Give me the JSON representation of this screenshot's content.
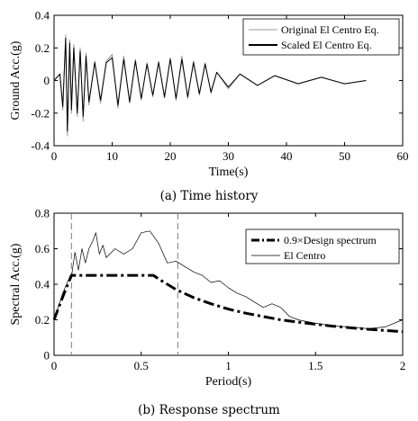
{
  "captions": {
    "top": "(a) Time history",
    "bottom": "(b) Response spectrum"
  },
  "chart_data": [
    {
      "type": "line",
      "xlabel": "Time(s)",
      "ylabel": "Ground Acc.(g)",
      "xlim": [
        0,
        60
      ],
      "ylim": [
        -0.4,
        0.4
      ],
      "xticks": [
        0,
        10,
        20,
        30,
        40,
        50,
        60
      ],
      "yticks": [
        -0.4,
        -0.2,
        0,
        0.2,
        0.4
      ],
      "xtick_labels": [
        "0",
        "10",
        "20",
        "30",
        "40",
        "50",
        "60"
      ],
      "ytick_labels": [
        "-0.4",
        "-0.2",
        "0",
        "0.2",
        "0.4"
      ],
      "legend_position": "top-right",
      "colors": {
        "original": "#9a9a9a",
        "scaled": "#000000"
      },
      "series": [
        {
          "name": "Original El Centro Eq.",
          "x": [
            0,
            1,
            1.5,
            2,
            2.3,
            2.7,
            3,
            3.4,
            4,
            4.5,
            5,
            5.5,
            6,
            7,
            8,
            9,
            10,
            11,
            12,
            13,
            14,
            15,
            16,
            17,
            18,
            19,
            20,
            21,
            22,
            23,
            24,
            25,
            26,
            27,
            28,
            30,
            32,
            35,
            38,
            42,
            46,
            50,
            53.7
          ],
          "values": [
            0,
            0.04,
            -0.18,
            0.28,
            -0.34,
            0.25,
            -0.2,
            0.22,
            -0.22,
            0.2,
            -0.25,
            0.17,
            -0.15,
            0.12,
            -0.14,
            0.12,
            0.16,
            -0.17,
            0.15,
            -0.14,
            0.13,
            -0.12,
            0.11,
            -0.1,
            0.12,
            -0.11,
            0.14,
            -0.12,
            0.15,
            -0.11,
            0.12,
            -0.09,
            0.11,
            -0.08,
            0.05,
            -0.05,
            0.04,
            -0.03,
            0.03,
            -0.02,
            0.02,
            -0.02,
            0
          ]
        },
        {
          "name": "Scaled El Centro Eq.",
          "x": [
            0,
            1,
            1.5,
            2,
            2.3,
            2.7,
            3,
            3.4,
            4,
            4.5,
            5,
            5.5,
            6,
            7,
            8,
            9,
            10,
            11,
            12,
            13,
            14,
            15,
            16,
            17,
            18,
            19,
            20,
            21,
            22,
            23,
            24,
            25,
            26,
            27,
            28,
            30,
            32,
            35,
            38,
            42,
            46,
            50,
            53.7
          ],
          "values": [
            0,
            0.04,
            -0.16,
            0.26,
            -0.31,
            0.23,
            -0.18,
            0.2,
            -0.2,
            0.18,
            -0.22,
            0.15,
            -0.13,
            0.11,
            -0.12,
            0.11,
            0.14,
            -0.15,
            0.13,
            -0.13,
            0.12,
            -0.11,
            0.1,
            -0.09,
            0.11,
            -0.1,
            0.13,
            -0.11,
            0.13,
            -0.1,
            0.11,
            -0.08,
            0.1,
            -0.07,
            0.05,
            -0.04,
            0.04,
            -0.03,
            0.03,
            -0.02,
            0.02,
            -0.02,
            0
          ]
        }
      ]
    },
    {
      "type": "line",
      "xlabel": "Period(s)",
      "ylabel": "Spectral Acc.(g)",
      "xlim": [
        0,
        2
      ],
      "ylim": [
        0,
        0.8
      ],
      "xticks": [
        0,
        0.5,
        1,
        1.5,
        2
      ],
      "yticks": [
        0,
        0.2,
        0.4,
        0.6,
        0.8
      ],
      "xtick_labels": [
        "0",
        "0.5",
        "1",
        "1.5",
        "2"
      ],
      "ytick_labels": [
        "0",
        "0.2",
        "0.4",
        "0.6",
        "0.8"
      ],
      "vertical_reference_lines": [
        0.1,
        0.71
      ],
      "legend_position": "top-right",
      "colors": {
        "design": "#000000",
        "elcentro": "#000000",
        "reference": "#888888"
      },
      "series": [
        {
          "name": "0.9×Design spectrum",
          "x": [
            0,
            0.05,
            0.1,
            0.12,
            0.2,
            0.3,
            0.4,
            0.5,
            0.57,
            0.6,
            0.7,
            0.8,
            0.9,
            1.0,
            1.1,
            1.2,
            1.3,
            1.4,
            1.5,
            1.6,
            1.7,
            1.8,
            1.9,
            2.0
          ],
          "values": [
            0.2,
            0.33,
            0.45,
            0.45,
            0.45,
            0.45,
            0.45,
            0.45,
            0.45,
            0.43,
            0.37,
            0.325,
            0.29,
            0.26,
            0.237,
            0.218,
            0.2,
            0.187,
            0.175,
            0.164,
            0.155,
            0.147,
            0.14,
            0.133
          ]
        },
        {
          "name": "El Centro",
          "x": [
            0,
            0.05,
            0.08,
            0.1,
            0.12,
            0.14,
            0.16,
            0.18,
            0.2,
            0.22,
            0.24,
            0.26,
            0.28,
            0.3,
            0.35,
            0.4,
            0.45,
            0.5,
            0.55,
            0.6,
            0.65,
            0.7,
            0.75,
            0.8,
            0.85,
            0.9,
            0.95,
            1.0,
            1.05,
            1.1,
            1.15,
            1.2,
            1.25,
            1.3,
            1.35,
            1.4,
            1.45,
            1.5,
            1.6,
            1.7,
            1.8,
            1.9,
            2.0
          ],
          "values": [
            0.2,
            0.35,
            0.42,
            0.44,
            0.58,
            0.48,
            0.6,
            0.52,
            0.6,
            0.64,
            0.69,
            0.57,
            0.62,
            0.55,
            0.6,
            0.57,
            0.6,
            0.69,
            0.7,
            0.63,
            0.52,
            0.53,
            0.5,
            0.47,
            0.45,
            0.41,
            0.42,
            0.38,
            0.35,
            0.33,
            0.3,
            0.27,
            0.29,
            0.27,
            0.22,
            0.2,
            0.19,
            0.18,
            0.165,
            0.16,
            0.15,
            0.16,
            0.2
          ]
        }
      ]
    }
  ]
}
